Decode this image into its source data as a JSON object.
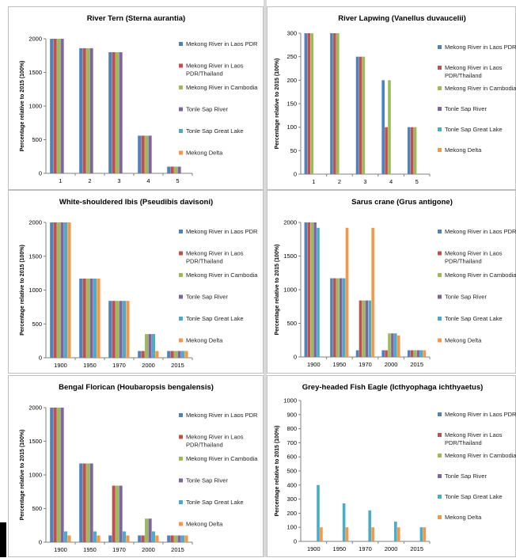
{
  "colors": {
    "Mekong River in Laos PDR": "#4f81bd",
    "Mekong River in Laos PDR/Thailand": "#c0504d",
    "Mekong River in Cambodia": "#9bbb59",
    "Tonle Sap River": "#8064a2",
    "Tonle Sap Great Lake": "#4bacc6",
    "Mekong Delta": "#f79646"
  },
  "chart_data": [
    {
      "type": "bar",
      "title": "River Tern (Sterna aurantia)",
      "ylabel": "Percentage relative to 2015 (100%)",
      "categories": [
        "1",
        "2",
        "3",
        "4",
        "5"
      ],
      "ylim": [
        0,
        2000
      ],
      "yticks": [
        "0",
        "500",
        "1000",
        "1500",
        "2000"
      ],
      "legend": [
        "Mekong River in Laos PDR",
        "Mekong River in Laos PDR/Thailand",
        "Mekong River in Cambodia",
        "Tonle Sap River",
        "Tonle Sap Great Lake",
        "Mekong Delta"
      ],
      "series": [
        {
          "name": "Mekong River in Laos PDR",
          "values": [
            2000,
            1860,
            1800,
            560,
            100
          ]
        },
        {
          "name": "Mekong River in Laos PDR/Thailand",
          "values": [
            2000,
            1860,
            1800,
            560,
            100
          ]
        },
        {
          "name": "Mekong River in Cambodia",
          "values": [
            2000,
            1860,
            1800,
            560,
            100
          ]
        },
        {
          "name": "Tonle Sap River",
          "values": [
            2000,
            1860,
            1800,
            560,
            100
          ]
        },
        {
          "name": "Tonle Sap Great Lake",
          "values": [
            0,
            0,
            0,
            0,
            0
          ]
        },
        {
          "name": "Mekong Delta",
          "values": [
            0,
            0,
            0,
            0,
            0
          ]
        }
      ]
    },
    {
      "type": "bar",
      "title": "River Lapwing (Vanellus duvaucelii)",
      "ylabel": "Percentage relative to 2015 (100%)",
      "categories": [
        "1",
        "2",
        "3",
        "4",
        "5"
      ],
      "ylim": [
        0,
        300
      ],
      "yticks": [
        "0",
        "50",
        "100",
        "150",
        "200",
        "250",
        "300"
      ],
      "legend": [
        "Mekong River in Laos PDR",
        "Mekong River in Laos PDR/Thailand",
        "Mekong River in Cambodia",
        "Tonle Sap River",
        "Tonle Sap Great Lake",
        "Mekong Delta"
      ],
      "series": [
        {
          "name": "Mekong River in Laos PDR",
          "values": [
            300,
            300,
            250,
            200,
            100
          ]
        },
        {
          "name": "Mekong River in Laos PDR/Thailand",
          "values": [
            300,
            300,
            250,
            100,
            100
          ]
        },
        {
          "name": "Mekong River in Cambodia",
          "values": [
            300,
            300,
            250,
            200,
            100
          ]
        },
        {
          "name": "Tonle Sap River",
          "values": [
            0,
            0,
            0,
            0,
            0
          ]
        },
        {
          "name": "Tonle Sap Great Lake",
          "values": [
            0,
            0,
            0,
            0,
            0
          ]
        },
        {
          "name": "Mekong Delta",
          "values": [
            0,
            0,
            0,
            0,
            0
          ]
        }
      ]
    },
    {
      "type": "bar",
      "title": "White-shouldered Ibis (Pseudibis davisoni)",
      "ylabel": "Percentage relative to 2015 (100%)",
      "categories": [
        "1900",
        "1950",
        "1970",
        "2000",
        "2015"
      ],
      "ylim": [
        0,
        2000
      ],
      "yticks": [
        "0",
        "500",
        "1000",
        "1500",
        "2000"
      ],
      "legend": [
        "Mekong River in Laos PDR",
        "Mekong River in Laos PDR/Thailand",
        "Mekong River in Cambodia",
        "Tonle Sap River",
        "Tonle Sap Great Lake",
        "Mekong Delta"
      ],
      "series": [
        {
          "name": "Mekong River in Laos PDR",
          "values": [
            2000,
            1170,
            840,
            100,
            100
          ]
        },
        {
          "name": "Mekong River in Laos PDR/Thailand",
          "values": [
            2000,
            1170,
            840,
            100,
            100
          ]
        },
        {
          "name": "Mekong River in Cambodia",
          "values": [
            2000,
            1170,
            840,
            350,
            100
          ]
        },
        {
          "name": "Tonle Sap River",
          "values": [
            2000,
            1170,
            840,
            350,
            100
          ]
        },
        {
          "name": "Tonle Sap Great Lake",
          "values": [
            2000,
            1170,
            840,
            350,
            100
          ]
        },
        {
          "name": "Mekong Delta",
          "values": [
            2000,
            1170,
            840,
            100,
            100
          ]
        }
      ]
    },
    {
      "type": "bar",
      "title": "Sarus crane (Grus antigone)",
      "ylabel": "Percentage relative to 2015 (100%)",
      "categories": [
        "1900",
        "1950",
        "1970",
        "2000",
        "2015"
      ],
      "ylim": [
        0,
        2000
      ],
      "yticks": [
        "0",
        "500",
        "1000",
        "1500",
        "2000"
      ],
      "legend": [
        "Mekong River in Laos PDR",
        "Mekong River in Laos PDR/Thailand",
        "Mekong River in Cambodia",
        "Tonle Sap River",
        "Tonle Sap Great Lake",
        "Mekong Delta"
      ],
      "series": [
        {
          "name": "Mekong River in Laos PDR",
          "values": [
            2000,
            1170,
            100,
            100,
            100
          ]
        },
        {
          "name": "Mekong River in Laos PDR/Thailand",
          "values": [
            2000,
            1170,
            840,
            100,
            100
          ]
        },
        {
          "name": "Mekong River in Cambodia",
          "values": [
            2000,
            1170,
            840,
            350,
            100
          ]
        },
        {
          "name": "Tonle Sap River",
          "values": [
            2000,
            1170,
            840,
            350,
            100
          ]
        },
        {
          "name": "Tonle Sap Great Lake",
          "values": [
            1920,
            1170,
            840,
            350,
            100
          ]
        },
        {
          "name": "Mekong Delta",
          "values": [
            0,
            1920,
            1920,
            320,
            100
          ]
        }
      ]
    },
    {
      "type": "bar",
      "title": "Bengal Florican (Houbaropsis bengalensis)",
      "ylabel": "Percentage relative to 2015 (100%)",
      "categories": [
        "1900",
        "1950",
        "1970",
        "2000",
        "2015"
      ],
      "ylim": [
        0,
        2000
      ],
      "yticks": [
        "0",
        "500",
        "1000",
        "1500",
        "2000"
      ],
      "legend": [
        "Mekong River in Laos PDR",
        "Mekong River in Laos PDR/Thailand",
        "Mekong River in Cambodia",
        "Tonle Sap River",
        "Tonle Sap Great Lake",
        "Mekong Delta"
      ],
      "series": [
        {
          "name": "Mekong River in Laos PDR",
          "values": [
            2000,
            1170,
            100,
            100,
            100
          ]
        },
        {
          "name": "Mekong River in Laos PDR/Thailand",
          "values": [
            2000,
            1170,
            840,
            100,
            100
          ]
        },
        {
          "name": "Mekong River in Cambodia",
          "values": [
            2000,
            1170,
            840,
            350,
            100
          ]
        },
        {
          "name": "Tonle Sap River",
          "values": [
            2000,
            1170,
            840,
            350,
            100
          ]
        },
        {
          "name": "Tonle Sap Great Lake",
          "values": [
            160,
            160,
            160,
            160,
            100
          ]
        },
        {
          "name": "Mekong Delta",
          "values": [
            100,
            100,
            100,
            100,
            100
          ]
        }
      ]
    },
    {
      "type": "bar",
      "title": "Grey-headed Fish Eagle (Icthyophaga ichthyaetus)",
      "ylabel": "Percentage relative to 2015 (100%)",
      "categories": [
        "1900",
        "1950",
        "1970",
        "2000",
        "2015"
      ],
      "ylim": [
        0,
        1000
      ],
      "yticks": [
        "0",
        "100",
        "200",
        "300",
        "400",
        "500",
        "600",
        "700",
        "800",
        "900",
        "1000"
      ],
      "legend": [
        "Mekong River in Laos PDR",
        "Mekong River in Laos PDR/Thailand",
        "Mekong River in Cambodia",
        "Tonle Sap River",
        "Tonle Sap Great Lake",
        "Mekong Delta"
      ],
      "series": [
        {
          "name": "Mekong River in Laos PDR",
          "values": [
            0,
            0,
            0,
            0,
            0
          ]
        },
        {
          "name": "Mekong River in Laos PDR/Thailand",
          "values": [
            0,
            0,
            0,
            0,
            0
          ]
        },
        {
          "name": "Mekong River in Cambodia",
          "values": [
            0,
            0,
            0,
            0,
            0
          ]
        },
        {
          "name": "Tonle Sap River",
          "values": [
            0,
            0,
            0,
            0,
            0
          ]
        },
        {
          "name": "Tonle Sap Great Lake",
          "values": [
            400,
            270,
            220,
            140,
            100
          ]
        },
        {
          "name": "Mekong Delta",
          "values": [
            100,
            100,
            100,
            100,
            100
          ]
        }
      ]
    }
  ]
}
